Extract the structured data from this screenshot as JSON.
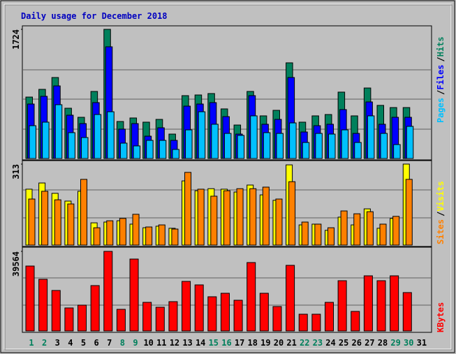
{
  "chart_data": [
    {
      "type": "bar",
      "title": "Daily usage for December 2018",
      "legend_separator": "/",
      "ylim": [
        0,
        1724
      ],
      "yticks": [
        1724
      ],
      "series": [
        {
          "name": "Hits",
          "color": "#00805c",
          "values": [
            820,
            923,
            1081,
            671,
            550,
            895,
            1724,
            494,
            541,
            485,
            522,
            326,
            839,
            848,
            867,
            662,
            447,
            895,
            569,
            643,
            1277,
            485,
            569,
            587,
            886,
            569,
            941,
            709,
            680,
            680,
            0
          ]
        },
        {
          "name": "Files",
          "color": "#0000ff",
          "values": [
            727,
            830,
            969,
            578,
            466,
            746,
            1491,
            392,
            466,
            298,
            410,
            242,
            699,
            727,
            746,
            559,
            326,
            839,
            457,
            522,
            1081,
            354,
            438,
            457,
            653,
            335,
            755,
            457,
            550,
            550,
            0
          ]
        },
        {
          "name": "Pages",
          "color": "#00c0ff",
          "values": [
            438,
            485,
            718,
            345,
            280,
            587,
            624,
            205,
            168,
            242,
            242,
            121,
            382,
            624,
            457,
            335,
            308,
            569,
            345,
            335,
            475,
            214,
            335,
            326,
            382,
            214,
            569,
            335,
            186,
            429,
            0
          ]
        }
      ]
    },
    {
      "type": "bar",
      "legend_separator": "/",
      "ylim": [
        0,
        313
      ],
      "yticks": [
        313
      ],
      "series": [
        {
          "name": "Visits",
          "color": "#ffff00",
          "values": [
            216,
            240,
            200,
            170,
            208,
            86,
            89,
            94,
            81,
            67,
            73,
            65,
            248,
            210,
            218,
            216,
            205,
            232,
            194,
            173,
            310,
            78,
            81,
            57,
            108,
            78,
            140,
            65,
            103,
            313,
            0
          ]
        },
        {
          "name": "Sites",
          "color": "#ff8000",
          "values": [
            178,
            208,
            175,
            159,
            254,
            67,
            94,
            103,
            119,
            70,
            78,
            62,
            281,
            216,
            189,
            210,
            218,
            218,
            224,
            178,
            245,
            89,
            81,
            67,
            132,
            121,
            129,
            81,
            111,
            254,
            0
          ]
        }
      ]
    },
    {
      "type": "bar",
      "ylim": [
        0,
        39564
      ],
      "yticks": [
        39564
      ],
      "categories": [
        "1",
        "2",
        "3",
        "4",
        "5",
        "6",
        "7",
        "8",
        "9",
        "10",
        "11",
        "12",
        "13",
        "14",
        "15",
        "16",
        "17",
        "18",
        "19",
        "20",
        "21",
        "22",
        "23",
        "24",
        "25",
        "26",
        "27",
        "28",
        "29",
        "30",
        "31"
      ],
      "category_colors": [
        "#00805c",
        "#00805c",
        "#000000",
        "#000000",
        "#000000",
        "#000000",
        "#000000",
        "#00805c",
        "#00805c",
        "#000000",
        "#000000",
        "#000000",
        "#000000",
        "#000000",
        "#00805c",
        "#00805c",
        "#000000",
        "#000000",
        "#000000",
        "#000000",
        "#000000",
        "#00805c",
        "#00805c",
        "#000000",
        "#000000",
        "#000000",
        "#000000",
        "#000000",
        "#00805c",
        "#00805c",
        "#000000"
      ],
      "series": [
        {
          "name": "KBytes",
          "color": "#ff0000",
          "values": [
            32273,
            25680,
            20128,
            11452,
            12840,
            22557,
            39564,
            10758,
            35744,
            14228,
            11799,
            14575,
            24639,
            22904,
            17004,
            18740,
            15269,
            34009,
            18740,
            12146,
            32621,
            8329,
            8329,
            14228,
            24986,
            9717,
            27415,
            24986,
            27415,
            19087,
            0
          ]
        }
      ]
    }
  ]
}
